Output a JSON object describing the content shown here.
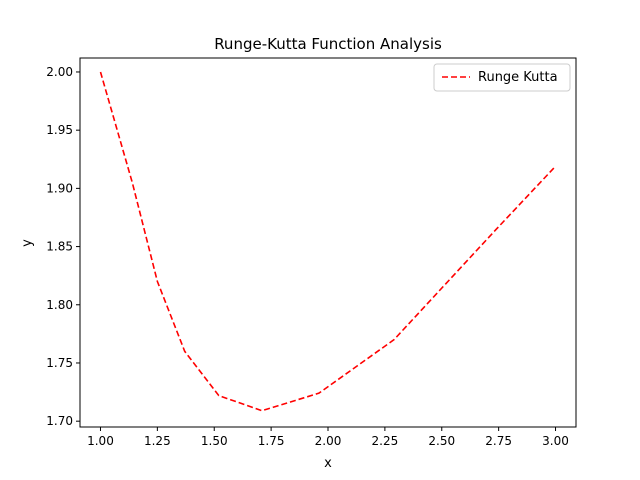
{
  "chart_data": {
    "type": "line",
    "title": "Runge-Kutta Function Analysis",
    "xlabel": "x",
    "ylabel": "y",
    "xlim": [
      0.91,
      3.09
    ],
    "ylim": [
      1.695,
      2.012
    ],
    "xticks": [
      1.0,
      1.25,
      1.5,
      1.75,
      2.0,
      2.25,
      2.5,
      2.75,
      3.0
    ],
    "xtick_labels": [
      "1.00",
      "1.25",
      "1.50",
      "1.75",
      "2.00",
      "2.25",
      "2.50",
      "2.75",
      "3.00"
    ],
    "yticks": [
      1.7,
      1.75,
      1.8,
      1.85,
      1.9,
      1.95,
      2.0
    ],
    "ytick_labels": [
      "1.70",
      "1.75",
      "1.80",
      "1.85",
      "1.90",
      "1.95",
      "2.00"
    ],
    "grid": false,
    "legend": {
      "position": "upper-right"
    },
    "series": [
      {
        "name": "Runge Kutta",
        "color": "#ff0000",
        "linestyle": "dashed",
        "x": [
          1.0,
          1.14,
          1.25,
          1.37,
          1.52,
          1.71,
          1.96,
          2.29,
          2.74,
          3.0
        ],
        "y": [
          2.0,
          1.905,
          1.82,
          1.76,
          1.722,
          1.709,
          1.724,
          1.77,
          1.865,
          1.919
        ]
      }
    ]
  }
}
